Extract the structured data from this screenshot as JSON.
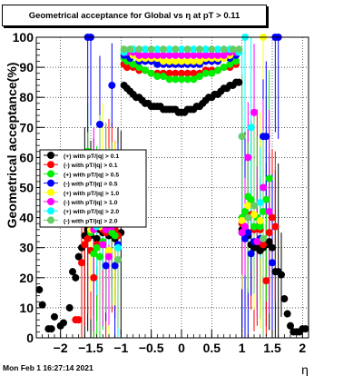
{
  "title": "Geometrical acceptance for Global vs  η at pT > 0.11",
  "footer_date": "Mon Feb  1 16:27:14 2021",
  "chart_data": {
    "type": "scatter",
    "xlabel": "η",
    "ylabel": "Geometrical acceptance(%)",
    "xlim": [
      -2.4,
      2.1
    ],
    "ylim": [
      0,
      100
    ],
    "x_ticks": [
      -2,
      -1.5,
      -1,
      -0.5,
      0,
      0.5,
      1,
      1.5,
      2
    ],
    "x_tick_labels": [
      "−2",
      "−1.5",
      "−1",
      "−0.5",
      "0",
      "0.5",
      "1",
      "1.5",
      "2"
    ],
    "y_ticks": [
      0,
      10,
      20,
      30,
      40,
      50,
      60,
      70,
      80,
      90,
      100
    ],
    "y_tick_labels": [
      "0",
      "10",
      "20",
      "30",
      "40",
      "50",
      "60",
      "70",
      "80",
      "90",
      "100"
    ],
    "grid": true,
    "legend_position": "left-middle",
    "series": [
      {
        "name": "(+) with pT/|q| > 0.1",
        "color": "#000000",
        "points": [
          [
            -2.35,
            16
          ],
          [
            -2.3,
            11
          ],
          [
            -2.2,
            3
          ],
          [
            -2.15,
            3
          ],
          [
            -2.1,
            7
          ],
          [
            -2.0,
            4
          ],
          [
            -1.95,
            5
          ],
          [
            -1.85,
            10
          ],
          [
            -1.8,
            22
          ],
          [
            -1.75,
            20
          ],
          [
            -1.7,
            27
          ],
          [
            -1.65,
            30
          ],
          [
            -1.6,
            34
          ],
          [
            -1.55,
            36
          ],
          [
            -1.5,
            34
          ],
          [
            -1.45,
            37
          ],
          [
            -1.4,
            33
          ],
          [
            -1.35,
            36
          ],
          [
            -1.3,
            35
          ],
          [
            -1.25,
            37
          ],
          [
            -1.2,
            34
          ],
          [
            -1.15,
            35
          ],
          [
            -1.1,
            33
          ],
          [
            -1.05,
            34
          ],
          [
            -1.0,
            35
          ],
          [
            -0.95,
            84
          ],
          [
            -0.9,
            83
          ],
          [
            -0.85,
            82
          ],
          [
            -0.8,
            81
          ],
          [
            -0.75,
            80
          ],
          [
            -0.7,
            80
          ],
          [
            -0.65,
            79
          ],
          [
            -0.6,
            78
          ],
          [
            -0.55,
            78
          ],
          [
            -0.5,
            77
          ],
          [
            -0.45,
            77
          ],
          [
            -0.4,
            77
          ],
          [
            -0.35,
            77
          ],
          [
            -0.3,
            76
          ],
          [
            -0.25,
            76
          ],
          [
            -0.2,
            76
          ],
          [
            -0.15,
            76
          ],
          [
            -0.1,
            76
          ],
          [
            -0.05,
            75
          ],
          [
            0.0,
            75
          ],
          [
            0.05,
            75
          ],
          [
            0.1,
            76
          ],
          [
            0.15,
            76
          ],
          [
            0.2,
            76
          ],
          [
            0.25,
            77
          ],
          [
            0.3,
            77
          ],
          [
            0.35,
            78
          ],
          [
            0.4,
            79
          ],
          [
            0.45,
            80
          ],
          [
            0.5,
            80
          ],
          [
            0.55,
            81
          ],
          [
            0.6,
            81
          ],
          [
            0.65,
            82
          ],
          [
            0.7,
            83
          ],
          [
            0.75,
            83
          ],
          [
            0.8,
            84
          ],
          [
            0.85,
            84
          ],
          [
            0.9,
            85
          ],
          [
            0.95,
            85
          ],
          [
            1.0,
            36
          ],
          [
            1.05,
            35
          ],
          [
            1.1,
            34
          ],
          [
            1.15,
            31
          ],
          [
            1.2,
            30
          ],
          [
            1.25,
            30
          ],
          [
            1.3,
            29
          ],
          [
            1.35,
            30
          ],
          [
            1.4,
            31
          ],
          [
            1.45,
            32
          ],
          [
            1.5,
            30
          ],
          [
            1.55,
            22
          ],
          [
            1.6,
            22
          ],
          [
            1.65,
            21
          ],
          [
            1.7,
            13
          ],
          [
            1.75,
            8
          ],
          [
            1.8,
            4
          ],
          [
            1.85,
            2
          ],
          [
            1.9,
            2
          ],
          [
            1.95,
            2
          ],
          [
            2.0,
            3
          ],
          [
            2.05,
            3
          ]
        ]
      },
      {
        "name": "(-) with pT/|q| > 0.1",
        "color": "#ff0000",
        "points": [
          [
            -1.75,
            6
          ],
          [
            -1.7,
            6
          ],
          [
            -1.65,
            25
          ],
          [
            -1.6,
            31
          ],
          [
            -1.55,
            33
          ],
          [
            -1.5,
            29
          ],
          [
            -1.45,
            20
          ],
          [
            -1.4,
            31
          ],
          [
            -1.35,
            40
          ],
          [
            -1.3,
            36
          ],
          [
            -1.25,
            35
          ],
          [
            -1.2,
            39
          ],
          [
            -1.15,
            40
          ],
          [
            -1.1,
            36
          ],
          [
            -1.05,
            34
          ],
          [
            -0.95,
            91
          ],
          [
            -0.9,
            90
          ],
          [
            -0.8,
            90
          ],
          [
            -0.7,
            89
          ],
          [
            -0.6,
            89
          ],
          [
            -0.5,
            88
          ],
          [
            -0.4,
            88
          ],
          [
            -0.3,
            88
          ],
          [
            -0.2,
            88
          ],
          [
            -0.1,
            88
          ],
          [
            0.0,
            88
          ],
          [
            0.1,
            88
          ],
          [
            0.2,
            88
          ],
          [
            0.3,
            88
          ],
          [
            0.4,
            89
          ],
          [
            0.5,
            89
          ],
          [
            0.6,
            89
          ],
          [
            0.7,
            90
          ],
          [
            0.8,
            90
          ],
          [
            0.9,
            91
          ],
          [
            1.0,
            38
          ],
          [
            1.05,
            36
          ],
          [
            1.1,
            40
          ],
          [
            1.15,
            41
          ],
          [
            1.2,
            36
          ],
          [
            1.25,
            40
          ],
          [
            1.3,
            36
          ],
          [
            1.35,
            31
          ],
          [
            1.4,
            19
          ],
          [
            1.45,
            35
          ],
          [
            1.5,
            40
          ],
          [
            1.55,
            37
          ]
        ]
      },
      {
        "name": "(+) with pT/|q| > 0.5",
        "color": "#00ee00",
        "points": [
          [
            -1.55,
            62
          ],
          [
            -1.5,
            35
          ],
          [
            -1.45,
            28
          ],
          [
            -1.4,
            30
          ],
          [
            -1.35,
            27
          ],
          [
            -1.3,
            32
          ],
          [
            -1.25,
            36
          ],
          [
            -1.2,
            38
          ],
          [
            -1.15,
            35
          ],
          [
            -1.1,
            34
          ],
          [
            -1.05,
            30
          ],
          [
            -0.95,
            93
          ],
          [
            -0.9,
            92
          ],
          [
            -0.8,
            91
          ],
          [
            -0.7,
            90
          ],
          [
            -0.6,
            89
          ],
          [
            -0.5,
            88
          ],
          [
            -0.4,
            87
          ],
          [
            -0.3,
            87
          ],
          [
            -0.2,
            86
          ],
          [
            -0.1,
            86
          ],
          [
            0.0,
            86
          ],
          [
            0.1,
            86
          ],
          [
            0.2,
            86
          ],
          [
            0.3,
            87
          ],
          [
            0.4,
            88
          ],
          [
            0.5,
            88
          ],
          [
            0.6,
            89
          ],
          [
            0.7,
            90
          ],
          [
            0.8,
            91
          ],
          [
            0.9,
            92
          ],
          [
            1.0,
            40
          ],
          [
            1.05,
            42
          ],
          [
            1.1,
            47
          ],
          [
            1.15,
            46
          ],
          [
            1.2,
            37
          ],
          [
            1.25,
            40
          ],
          [
            1.3,
            37
          ],
          [
            1.35,
            42
          ],
          [
            1.4,
            46
          ],
          [
            1.45,
            53
          ]
        ]
      },
      {
        "name": "(-) with pT/|q| > 0.5",
        "color": "#0000ff",
        "points": [
          [
            -1.55,
            100
          ],
          [
            -1.5,
            100
          ],
          [
            -1.35,
            71
          ],
          [
            -1.25,
            24
          ],
          [
            -1.15,
            84
          ],
          [
            -1.1,
            24
          ],
          [
            -1.05,
            31
          ],
          [
            -0.95,
            94
          ],
          [
            -0.85,
            93
          ],
          [
            -0.7,
            92
          ],
          [
            -0.6,
            92
          ],
          [
            -0.5,
            92
          ],
          [
            -0.4,
            91
          ],
          [
            -0.3,
            91
          ],
          [
            -0.2,
            91
          ],
          [
            -0.1,
            91
          ],
          [
            0.0,
            91
          ],
          [
            0.1,
            91
          ],
          [
            0.2,
            91
          ],
          [
            0.3,
            91
          ],
          [
            0.4,
            92
          ],
          [
            0.5,
            92
          ],
          [
            0.6,
            92
          ],
          [
            0.7,
            93
          ],
          [
            0.8,
            93
          ],
          [
            0.9,
            94
          ],
          [
            1.0,
            35
          ],
          [
            1.05,
            33
          ],
          [
            1.1,
            35
          ],
          [
            1.15,
            28
          ],
          [
            1.2,
            32
          ],
          [
            1.3,
            33
          ],
          [
            1.35,
            67
          ],
          [
            1.4,
            67
          ],
          [
            1.5,
            25
          ],
          [
            1.55,
            100
          ],
          [
            1.6,
            100
          ]
        ]
      },
      {
        "name": "(+) with pT/|q| > 1.0",
        "color": "#ffff00",
        "points": [
          [
            -1.5,
            36
          ],
          [
            -1.4,
            40
          ],
          [
            -1.35,
            37
          ],
          [
            -1.3,
            42
          ],
          [
            -1.2,
            29
          ],
          [
            -1.1,
            38
          ],
          [
            -0.95,
            95
          ],
          [
            -0.8,
            94
          ],
          [
            -0.7,
            93
          ],
          [
            -0.6,
            93
          ],
          [
            -0.5,
            93
          ],
          [
            -0.4,
            93
          ],
          [
            -0.3,
            92
          ],
          [
            -0.2,
            92
          ],
          [
            -0.1,
            92
          ],
          [
            0.0,
            92
          ],
          [
            0.1,
            92
          ],
          [
            0.2,
            92
          ],
          [
            0.3,
            92
          ],
          [
            0.4,
            93
          ],
          [
            0.5,
            93
          ],
          [
            0.6,
            93
          ],
          [
            0.7,
            93
          ],
          [
            0.8,
            94
          ],
          [
            0.9,
            95
          ],
          [
            1.0,
            39
          ],
          [
            1.1,
            44
          ],
          [
            1.2,
            41
          ],
          [
            1.3,
            39
          ],
          [
            1.35,
            100
          ]
        ]
      },
      {
        "name": "(-) with pT/|q| > 1.0",
        "color": "#ff00ff",
        "points": [
          [
            -1.45,
            36
          ],
          [
            -1.35,
            39
          ],
          [
            -1.3,
            31
          ],
          [
            -1.25,
            36
          ],
          [
            -1.2,
            27
          ],
          [
            -1.15,
            37
          ],
          [
            -0.9,
            95
          ],
          [
            -0.8,
            95
          ],
          [
            -0.7,
            94
          ],
          [
            -0.6,
            94
          ],
          [
            -0.5,
            94
          ],
          [
            -0.4,
            94
          ],
          [
            -0.3,
            94
          ],
          [
            -0.2,
            94
          ],
          [
            -0.1,
            94
          ],
          [
            0.0,
            94
          ],
          [
            0.1,
            94
          ],
          [
            0.2,
            94
          ],
          [
            0.3,
            94
          ],
          [
            0.4,
            94
          ],
          [
            0.5,
            94
          ],
          [
            0.6,
            94
          ],
          [
            0.7,
            94
          ],
          [
            0.8,
            95
          ],
          [
            0.9,
            95
          ],
          [
            1.0,
            35
          ],
          [
            1.05,
            37
          ],
          [
            1.1,
            60
          ],
          [
            1.2,
            75
          ],
          [
            1.25,
            32
          ],
          [
            1.35,
            50
          ],
          [
            1.45,
            42
          ]
        ]
      },
      {
        "name": "(+) with pT/|q| > 2.0",
        "color": "#00ffff",
        "points": [
          [
            -1.4,
            37
          ],
          [
            -1.3,
            41
          ],
          [
            -1.2,
            45
          ],
          [
            -1.05,
            30
          ],
          [
            -0.95,
            95
          ],
          [
            -0.8,
            96
          ],
          [
            -0.6,
            96
          ],
          [
            -0.4,
            96
          ],
          [
            -0.2,
            96
          ],
          [
            0.0,
            96
          ],
          [
            0.2,
            96
          ],
          [
            0.4,
            96
          ],
          [
            0.6,
            96
          ],
          [
            0.8,
            96
          ],
          [
            0.95,
            95
          ],
          [
            1.0,
            67
          ],
          [
            1.05,
            100
          ],
          [
            1.15,
            70
          ],
          [
            1.3,
            45
          ]
        ]
      },
      {
        "name": "(-) with pT/|q| > 2.0",
        "color": "#66cc66",
        "points": [
          [
            -1.35,
            38
          ],
          [
            -1.25,
            40
          ],
          [
            -1.15,
            38
          ],
          [
            -1.05,
            26
          ],
          [
            -0.95,
            96
          ],
          [
            -0.85,
            96
          ],
          [
            -0.7,
            96
          ],
          [
            -0.5,
            96
          ],
          [
            -0.3,
            96
          ],
          [
            -0.1,
            96
          ],
          [
            0.1,
            96
          ],
          [
            0.3,
            96
          ],
          [
            0.5,
            96
          ],
          [
            0.7,
            96
          ],
          [
            0.85,
            96
          ],
          [
            0.95,
            96
          ],
          [
            1.0,
            67
          ],
          [
            1.1,
            40
          ],
          [
            1.2,
            44
          ],
          [
            1.35,
            33
          ]
        ]
      }
    ]
  }
}
